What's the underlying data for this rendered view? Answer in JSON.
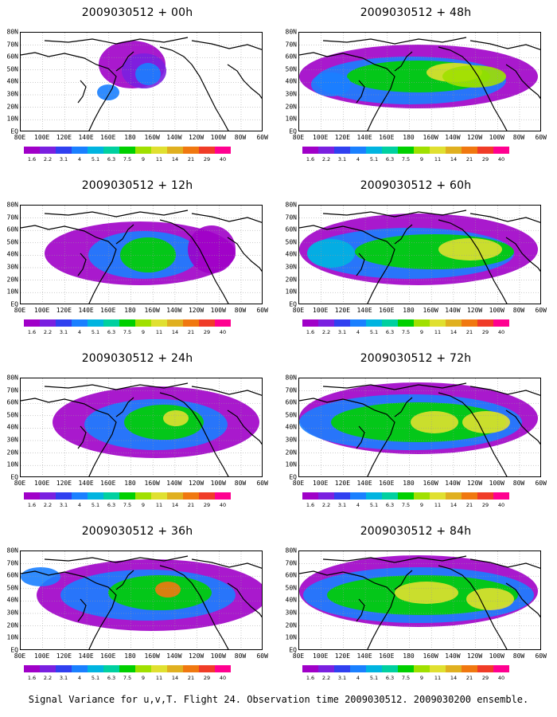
{
  "caption": "Signal Variance for u,v,T. Flight 24. Observation time 2009030512. 2009030200 ensemble.",
  "lat_labels": [
    "80N",
    "70N",
    "60N",
    "50N",
    "40N",
    "30N",
    "20N",
    "10N",
    "EQ"
  ],
  "lon_labels": [
    "80E",
    "100E",
    "120E",
    "140E",
    "160E",
    "180",
    "160W",
    "140W",
    "120W",
    "100W",
    "80W",
    "60W"
  ],
  "colorbar": {
    "labels": [
      "1.6",
      "2.2",
      "3.1",
      "4",
      "5.1",
      "6.3",
      "7.5",
      "9",
      "11",
      "14",
      "21",
      "29",
      "40"
    ],
    "colors": [
      "#a000c8",
      "#7a20e0",
      "#3040f0",
      "#1a80ff",
      "#00b4e0",
      "#00d0a0",
      "#00d000",
      "#a0e000",
      "#e0e030",
      "#e0b020",
      "#f07810",
      "#f03c28",
      "#ff0090"
    ]
  },
  "panels": [
    {
      "title": "2009030512 + 00h",
      "lead": "00h"
    },
    {
      "title": "2009030512 + 48h",
      "lead": "48h"
    },
    {
      "title": "2009030512 + 12h",
      "lead": "12h"
    },
    {
      "title": "2009030512 + 60h",
      "lead": "60h"
    },
    {
      "title": "2009030512 + 24h",
      "lead": "24h"
    },
    {
      "title": "2009030512 + 72h",
      "lead": "72h"
    },
    {
      "title": "2009030512 + 36h",
      "lead": "36h"
    },
    {
      "title": "2009030512 + 84h",
      "lead": "84h"
    }
  ]
}
